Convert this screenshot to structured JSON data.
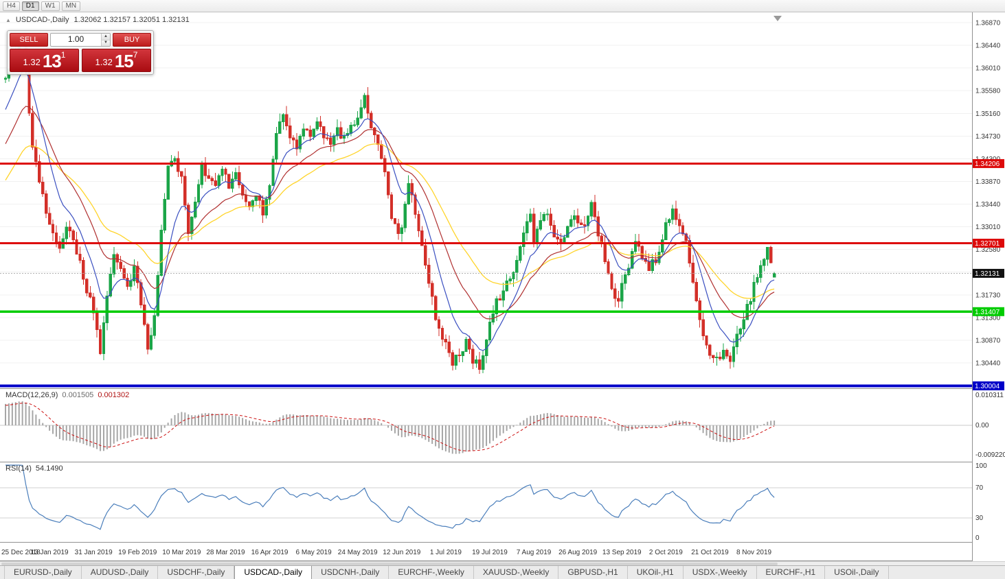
{
  "toolbar": {
    "timeframes": [
      {
        "label": "H4",
        "active": false
      },
      {
        "label": "D1",
        "active": true
      },
      {
        "label": "W1",
        "active": false
      },
      {
        "label": "MN",
        "active": false
      }
    ]
  },
  "chart": {
    "collapse_icon": "▲",
    "symbol": "USDCAD-,Daily",
    "ohlc": "1.32062 1.32157 1.32051 1.32131"
  },
  "one_click": {
    "sell_label": "SELL",
    "buy_label": "BUY",
    "volume": "1.00",
    "sell_base": "1.32",
    "sell_big": "13",
    "sell_sup": "1",
    "buy_base": "1.32",
    "buy_big": "15",
    "buy_sup": "7"
  },
  "price_axis": {
    "ticks": [
      "1.36870",
      "1.36440",
      "1.36010",
      "1.35580",
      "1.35160",
      "1.34730",
      "1.34300",
      "1.33870",
      "1.33440",
      "1.33010",
      "1.32580",
      "1.32150",
      "1.31730",
      "1.31300",
      "1.30870",
      "1.30440",
      "1.30010"
    ],
    "current_label": "1.32131"
  },
  "macd": {
    "label": "MACD(12,26,9)",
    "main_value": "0.001505",
    "signal_value": "0.001302",
    "axis_max": "0.010311",
    "axis_zero": "0.00",
    "axis_min": "-0.009220"
  },
  "rsi": {
    "label": "RSI(14)",
    "value": "54.1490",
    "axis": [
      "100",
      "70",
      "30",
      "0"
    ]
  },
  "dates": [
    {
      "index": 0,
      "label": "25 Dec 2018"
    },
    {
      "index": 13,
      "label": "13 Jan 2019"
    },
    {
      "index": 26,
      "label": "31 Jan 2019"
    },
    {
      "index": 39,
      "label": "19 Feb 2019"
    },
    {
      "index": 52,
      "label": "10 Mar 2019"
    },
    {
      "index": 65,
      "label": "28 Mar 2019"
    },
    {
      "index": 78,
      "label": "16 Apr 2019"
    },
    {
      "index": 91,
      "label": "6 May 2019"
    },
    {
      "index": 104,
      "label": "24 May 2019"
    },
    {
      "index": 117,
      "label": "12 Jun 2019"
    },
    {
      "index": 130,
      "label": "1 Jul 2019"
    },
    {
      "index": 143,
      "label": "19 Jul 2019"
    },
    {
      "index": 156,
      "label": "7 Aug 2019"
    },
    {
      "index": 169,
      "label": "26 Aug 2019"
    },
    {
      "index": 182,
      "label": "13 Sep 2019"
    },
    {
      "index": 195,
      "label": "2 Oct 2019"
    },
    {
      "index": 208,
      "label": "21 Oct 2019"
    },
    {
      "index": 221,
      "label": "8 Nov 2019"
    }
  ],
  "tabs": [
    {
      "label": "EURUSD-,Daily",
      "active": false
    },
    {
      "label": "AUDUSD-,Daily",
      "active": false
    },
    {
      "label": "USDCHF-,Daily",
      "active": false
    },
    {
      "label": "USDCAD-,Daily",
      "active": true
    },
    {
      "label": "USDCNH-,Daily",
      "active": false
    },
    {
      "label": "EURCHF-,Weekly",
      "active": false
    },
    {
      "label": "XAUUSD-,Weekly",
      "active": false
    },
    {
      "label": "GBPUSD-,H1",
      "active": false
    },
    {
      "label": "UKOil-,H1",
      "active": false
    },
    {
      "label": "USDX-,Weekly",
      "active": false
    },
    {
      "label": "EURCHF-,H1",
      "active": false
    },
    {
      "label": "USOil-,Daily",
      "active": false
    }
  ],
  "chart_data": {
    "type": "candlestick",
    "symbol": "USDCAD-",
    "timeframe": "Daily",
    "visible_bars": 228,
    "y_range": [
      1.3001,
      1.3687
    ],
    "current_price": 1.32131,
    "last_candle": {
      "open": 1.32062,
      "high": 1.32157,
      "low": 1.32051,
      "close": 1.32131
    },
    "levels": [
      {
        "price": 1.34206,
        "label": "1.34206",
        "color": "#dd0a0a",
        "width": 3,
        "role": "resistance"
      },
      {
        "price": 1.32701,
        "label": "1.32701",
        "color": "#dd0a0a",
        "width": 3,
        "role": "resistance"
      },
      {
        "price": 1.31407,
        "label": "1.31407",
        "color": "#00cc00",
        "width": 3.5,
        "role": "support"
      },
      {
        "price": 1.30004,
        "label": "1.30004",
        "color": "#0000c8",
        "width": 4,
        "role": "support"
      }
    ],
    "colors": {
      "up": "#1ba548",
      "down": "#d32f28",
      "ma_fast": "#3a4fc0",
      "ma_mid": "#b03030",
      "ma_slow": "#ffd42a"
    },
    "moving_averages": [
      {
        "period": 10,
        "color": "#3a4fc0"
      },
      {
        "period": 22,
        "color": "#b03030"
      },
      {
        "period": 40,
        "color": "#ffd42a"
      }
    ],
    "indicators": [
      {
        "name": "MACD",
        "params": "12,26,9",
        "values": [
          0.001505,
          0.001302
        ],
        "axis_range": [
          -0.00922,
          0.010311
        ]
      },
      {
        "name": "RSI",
        "params": "14",
        "value": 54.149,
        "axis_range": [
          0,
          100
        ],
        "levels": [
          30,
          70
        ]
      }
    ],
    "price_path": [
      [
        0,
        1.358
      ],
      [
        2,
        1.3625
      ],
      [
        5,
        1.3655
      ],
      [
        8,
        1.3455
      ],
      [
        11,
        1.336
      ],
      [
        13,
        1.33
      ],
      [
        16,
        1.3265
      ],
      [
        18,
        1.3305
      ],
      [
        21,
        1.3255
      ],
      [
        24,
        1.3185
      ],
      [
        26,
        1.3145
      ],
      [
        28,
        1.3062
      ],
      [
        30,
        1.3175
      ],
      [
        32,
        1.325
      ],
      [
        34,
        1.3218
      ],
      [
        36,
        1.318
      ],
      [
        38,
        1.3228
      ],
      [
        40,
        1.3155
      ],
      [
        42,
        1.3068
      ],
      [
        44,
        1.313
      ],
      [
        46,
        1.329
      ],
      [
        48,
        1.3415
      ],
      [
        50,
        1.3428
      ],
      [
        52,
        1.339
      ],
      [
        54,
        1.3292
      ],
      [
        56,
        1.334
      ],
      [
        58,
        1.3418
      ],
      [
        60,
        1.3395
      ],
      [
        62,
        1.337
      ],
      [
        64,
        1.3408
      ],
      [
        66,
        1.338
      ],
      [
        68,
        1.3398
      ],
      [
        70,
        1.3365
      ],
      [
        72,
        1.334
      ],
      [
        74,
        1.3355
      ],
      [
        76,
        1.3332
      ],
      [
        78,
        1.3385
      ],
      [
        80,
        1.3478
      ],
      [
        82,
        1.3508
      ],
      [
        84,
        1.3475
      ],
      [
        86,
        1.3452
      ],
      [
        88,
        1.3488
      ],
      [
        90,
        1.348
      ],
      [
        92,
        1.3494
      ],
      [
        94,
        1.347
      ],
      [
        96,
        1.3465
      ],
      [
        98,
        1.348
      ],
      [
        100,
        1.347
      ],
      [
        102,
        1.349
      ],
      [
        104,
        1.35
      ],
      [
        106,
        1.3548
      ],
      [
        108,
        1.3482
      ],
      [
        110,
        1.3452
      ],
      [
        112,
        1.34
      ],
      [
        114,
        1.332
      ],
      [
        116,
        1.3282
      ],
      [
        117,
        1.33
      ],
      [
        119,
        1.3388
      ],
      [
        121,
        1.333
      ],
      [
        123,
        1.327
      ],
      [
        125,
        1.32
      ],
      [
        127,
        1.313
      ],
      [
        129,
        1.309
      ],
      [
        130,
        1.3075
      ],
      [
        132,
        1.3046
      ],
      [
        134,
        1.306
      ],
      [
        136,
        1.308
      ],
      [
        138,
        1.3052
      ],
      [
        140,
        1.304
      ],
      [
        142,
        1.309
      ],
      [
        143,
        1.3118
      ],
      [
        145,
        1.3158
      ],
      [
        147,
        1.318
      ],
      [
        149,
        1.3208
      ],
      [
        151,
        1.324
      ],
      [
        153,
        1.3288
      ],
      [
        155,
        1.3318
      ],
      [
        156,
        1.3272
      ],
      [
        158,
        1.3308
      ],
      [
        160,
        1.333
      ],
      [
        162,
        1.329
      ],
      [
        164,
        1.3266
      ],
      [
        166,
        1.33
      ],
      [
        168,
        1.3328
      ],
      [
        169,
        1.331
      ],
      [
        171,
        1.3296
      ],
      [
        173,
        1.3342
      ],
      [
        175,
        1.329
      ],
      [
        177,
        1.3232
      ],
      [
        179,
        1.318
      ],
      [
        181,
        1.3152
      ],
      [
        182,
        1.319
      ],
      [
        184,
        1.3228
      ],
      [
        186,
        1.3268
      ],
      [
        188,
        1.325
      ],
      [
        190,
        1.3222
      ],
      [
        192,
        1.324
      ],
      [
        194,
        1.328
      ],
      [
        195,
        1.33
      ],
      [
        197,
        1.3332
      ],
      [
        199,
        1.331
      ],
      [
        201,
        1.3282
      ],
      [
        203,
        1.32
      ],
      [
        205,
        1.3122
      ],
      [
        207,
        1.3082
      ],
      [
        208,
        1.3066
      ],
      [
        210,
        1.3052
      ],
      [
        212,
        1.306
      ],
      [
        214,
        1.3046
      ],
      [
        216,
        1.309
      ],
      [
        218,
        1.313
      ],
      [
        220,
        1.3168
      ],
      [
        221,
        1.319
      ],
      [
        223,
        1.3228
      ],
      [
        225,
        1.3262
      ],
      [
        226,
        1.324
      ],
      [
        227,
        1.32131
      ]
    ]
  }
}
